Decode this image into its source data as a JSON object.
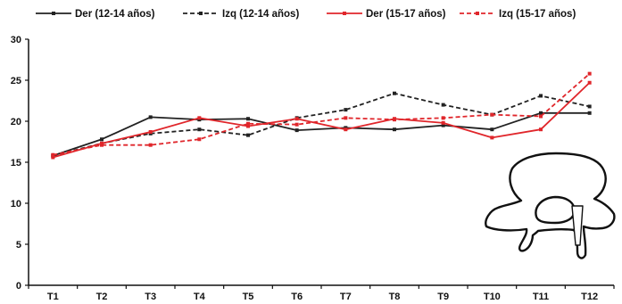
{
  "chart_data": {
    "type": "line",
    "categories": [
      "T1",
      "T2",
      "T3",
      "T4",
      "T5",
      "T6",
      "T7",
      "T8",
      "T9",
      "T10",
      "T11",
      "T12"
    ],
    "ylim": [
      0,
      30
    ],
    "yticks": [
      0,
      5,
      10,
      15,
      20,
      25,
      30
    ],
    "legend_position": "top",
    "series": [
      {
        "name": "Der (12-14 años)",
        "color": "#222222",
        "dash": "solid",
        "values": [
          15.8,
          17.8,
          20.5,
          20.2,
          20.3,
          18.9,
          19.2,
          19.0,
          19.5,
          19.0,
          21.0,
          21.0
        ]
      },
      {
        "name": "Izq (12-14 años)",
        "color": "#222222",
        "dash": "dashed",
        "values": [
          15.8,
          17.3,
          18.5,
          19.0,
          18.3,
          20.4,
          21.4,
          23.4,
          22.0,
          20.8,
          23.1,
          21.8
        ]
      },
      {
        "name": "Der (15-17 años)",
        "color": "#e0262b",
        "dash": "solid",
        "values": [
          15.6,
          17.3,
          18.7,
          20.4,
          19.4,
          20.3,
          19.0,
          20.3,
          19.8,
          18.0,
          19.0,
          24.7
        ]
      },
      {
        "name": "Izq (15-17 años)",
        "color": "#e0262b",
        "dash": "dashed",
        "values": [
          15.9,
          17.1,
          17.1,
          17.8,
          19.7,
          19.6,
          20.4,
          20.2,
          20.4,
          20.8,
          20.6,
          25.8
        ]
      }
    ]
  },
  "illustration": {
    "icon": "vertebra-icon"
  }
}
